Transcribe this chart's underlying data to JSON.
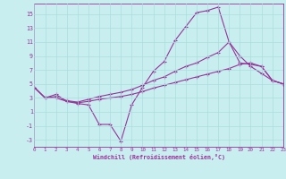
{
  "xlabel": "Windchill (Refroidissement éolien,°C)",
  "bg_color": "#c8eef0",
  "line_color": "#993399",
  "grid_color": "#aadddd",
  "xlim": [
    0,
    23
  ],
  "ylim": [
    -4,
    16.5
  ],
  "xticks": [
    0,
    1,
    2,
    3,
    4,
    5,
    6,
    7,
    8,
    9,
    10,
    11,
    12,
    13,
    14,
    15,
    16,
    17,
    18,
    19,
    20,
    21,
    22,
    23
  ],
  "yticks": [
    -3,
    -1,
    1,
    3,
    5,
    7,
    9,
    11,
    13,
    15
  ],
  "line1_x": [
    0,
    1,
    2,
    3,
    4,
    5,
    6,
    7,
    8,
    9,
    10,
    11,
    12,
    13,
    14,
    15,
    16,
    17,
    18,
    19,
    20,
    21,
    22,
    23
  ],
  "line1_y": [
    4.5,
    3.0,
    3.5,
    2.5,
    2.2,
    2.0,
    -0.8,
    -0.8,
    -3.2,
    2.0,
    4.5,
    6.8,
    8.2,
    11.2,
    13.2,
    15.2,
    15.5,
    16.0,
    11.0,
    8.0,
    7.8,
    7.5,
    5.5,
    5.0
  ],
  "line2_x": [
    0,
    1,
    2,
    3,
    4,
    5,
    6,
    7,
    8,
    9,
    10,
    11,
    12,
    13,
    14,
    15,
    16,
    17,
    18,
    19,
    20,
    21,
    22,
    23
  ],
  "line2_y": [
    4.5,
    3.0,
    3.2,
    2.6,
    2.4,
    2.8,
    3.2,
    3.5,
    3.8,
    4.2,
    4.8,
    5.5,
    6.0,
    6.8,
    7.5,
    8.0,
    8.8,
    9.5,
    11.0,
    9.0,
    7.5,
    6.5,
    5.5,
    5.0
  ],
  "line3_x": [
    0,
    1,
    2,
    3,
    4,
    5,
    6,
    7,
    8,
    9,
    10,
    11,
    12,
    13,
    14,
    15,
    16,
    17,
    18,
    19,
    20,
    21,
    22,
    23
  ],
  "line3_y": [
    4.5,
    3.0,
    3.0,
    2.5,
    2.3,
    2.5,
    2.8,
    3.0,
    3.2,
    3.5,
    3.9,
    4.4,
    4.8,
    5.2,
    5.6,
    6.0,
    6.4,
    6.8,
    7.2,
    7.8,
    8.0,
    7.5,
    5.5,
    5.0
  ]
}
